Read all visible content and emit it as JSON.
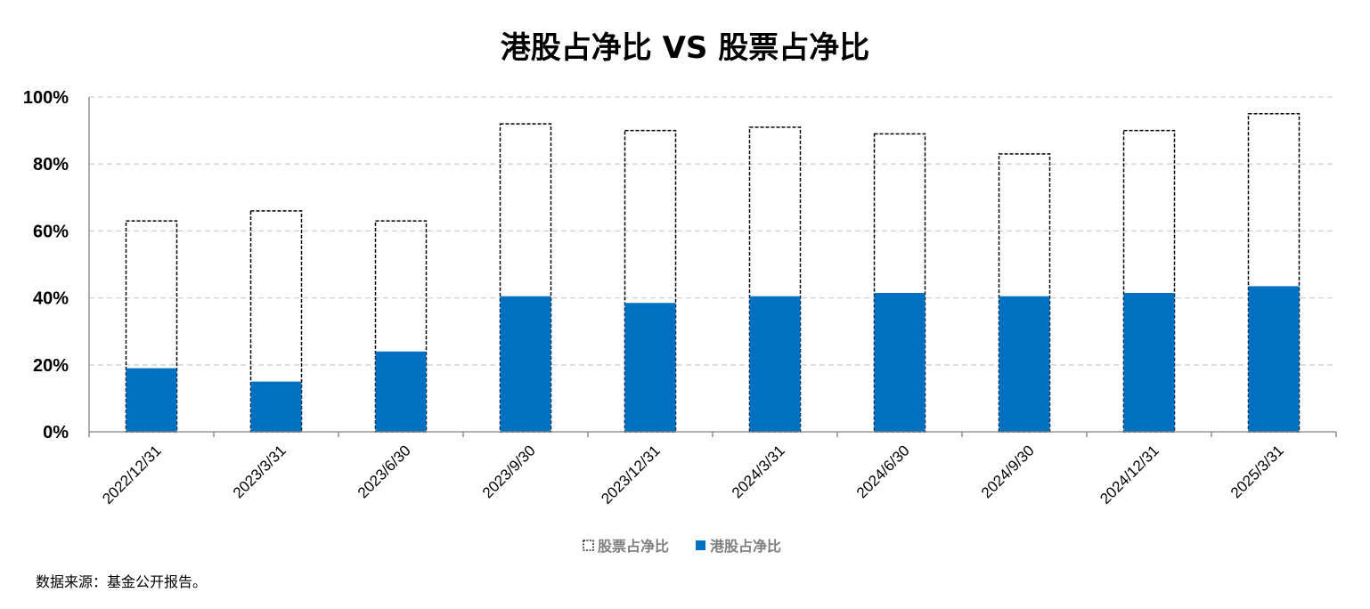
{
  "chart_data": {
    "type": "bar",
    "title": "港股占净比 VS 股票占净比",
    "categories": [
      "2022/12/31",
      "2023/3/31",
      "2023/6/30",
      "2023/9/30",
      "2023/12/31",
      "2024/3/31",
      "2024/6/30",
      "2024/9/30",
      "2024/12/31",
      "2025/3/31"
    ],
    "series": [
      {
        "name": "股票占净比",
        "values": [
          63,
          66,
          63,
          92,
          90,
          91,
          89,
          83,
          90,
          95
        ],
        "color": "#000000",
        "style": "dashed-outline"
      },
      {
        "name": "港股占净比",
        "values": [
          19,
          15,
          24,
          40.5,
          38.5,
          40.5,
          41.5,
          40.5,
          41.5,
          43.5
        ],
        "color": "#0070c0",
        "style": "solid"
      }
    ],
    "ylim": [
      0,
      100
    ],
    "yticks": [
      "0%",
      "20%",
      "40%",
      "60%",
      "80%",
      "100%"
    ],
    "ytick_values": [
      0,
      20,
      40,
      60,
      80,
      100
    ],
    "grid": true,
    "legend_position": "bottom-center",
    "xlabel": "",
    "ylabel": ""
  },
  "source_note": "数据来源：基金公开报告。"
}
